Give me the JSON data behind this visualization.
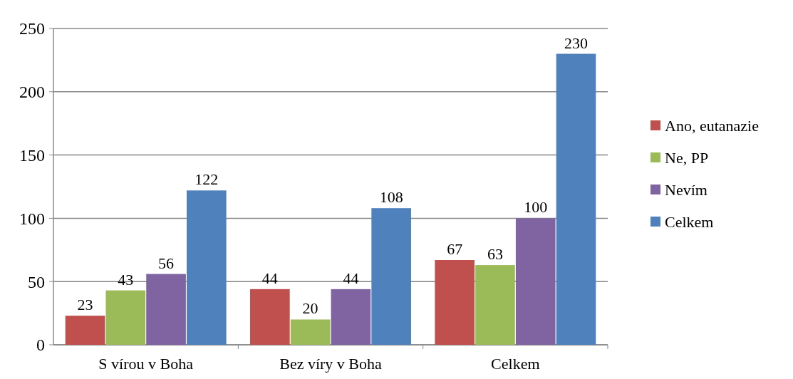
{
  "chart_data": {
    "type": "bar",
    "categories": [
      "S vírou v Boha",
      "Bez víry v Boha",
      "Celkem"
    ],
    "series": [
      {
        "name": "Ano, eutanazie",
        "color": "#c0504d",
        "values": [
          23,
          44,
          67
        ]
      },
      {
        "name": "Ne, PP",
        "color": "#9bbb59",
        "values": [
          43,
          20,
          63
        ]
      },
      {
        "name": "Nevím",
        "color": "#8064a2",
        "values": [
          56,
          44,
          100
        ]
      },
      {
        "name": "Celkem",
        "color": "#4f81bd",
        "values": [
          122,
          108,
          230
        ]
      }
    ],
    "ylim": [
      0,
      250
    ],
    "yticks": [
      0,
      50,
      100,
      150,
      200,
      250
    ],
    "grid": "y",
    "legend": "right",
    "data_labels": true
  }
}
